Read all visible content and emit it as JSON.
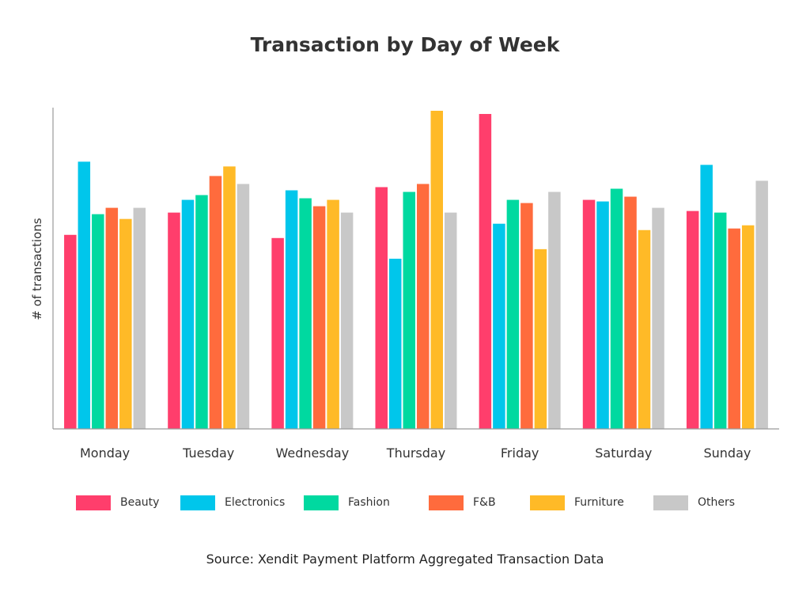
{
  "chart_data": {
    "type": "bar",
    "title": "Transaction by Day of Week",
    "ylabel": "# of transactions",
    "xlabel": "",
    "yticks": "hidden",
    "ylim": [
      0,
      100
    ],
    "grid": false,
    "legend_position": "bottom",
    "categories": [
      "Monday",
      "Tuesday",
      "Wednesday",
      "Thursday",
      "Friday",
      "Saturday",
      "Sunday"
    ],
    "series": [
      {
        "name": "Beauty",
        "color": "#FF3E6C",
        "values": [
          61,
          68,
          60,
          76,
          99,
          72,
          68.5
        ]
      },
      {
        "name": "Electronics",
        "color": "#00C6EB",
        "values": [
          84,
          72,
          75,
          53.5,
          64.5,
          71.5,
          83
        ]
      },
      {
        "name": "Fashion",
        "color": "#00D9A0",
        "values": [
          67.5,
          73.5,
          72.5,
          74.5,
          72,
          75.5,
          68
        ]
      },
      {
        "name": "F&B",
        "color": "#FF6B3D",
        "values": [
          69.5,
          79.5,
          70,
          77,
          71,
          73,
          63
        ]
      },
      {
        "name": "Furniture",
        "color": "#FFBA27",
        "values": [
          66,
          82.5,
          72,
          100,
          56.5,
          62.5,
          64
        ]
      },
      {
        "name": "Others",
        "color": "#C8C8C8",
        "values": [
          69.5,
          77,
          68,
          68,
          74.5,
          69.5,
          78
        ]
      }
    ],
    "source": "Source: Xendit Payment Platform Aggregated Transaction Data"
  }
}
